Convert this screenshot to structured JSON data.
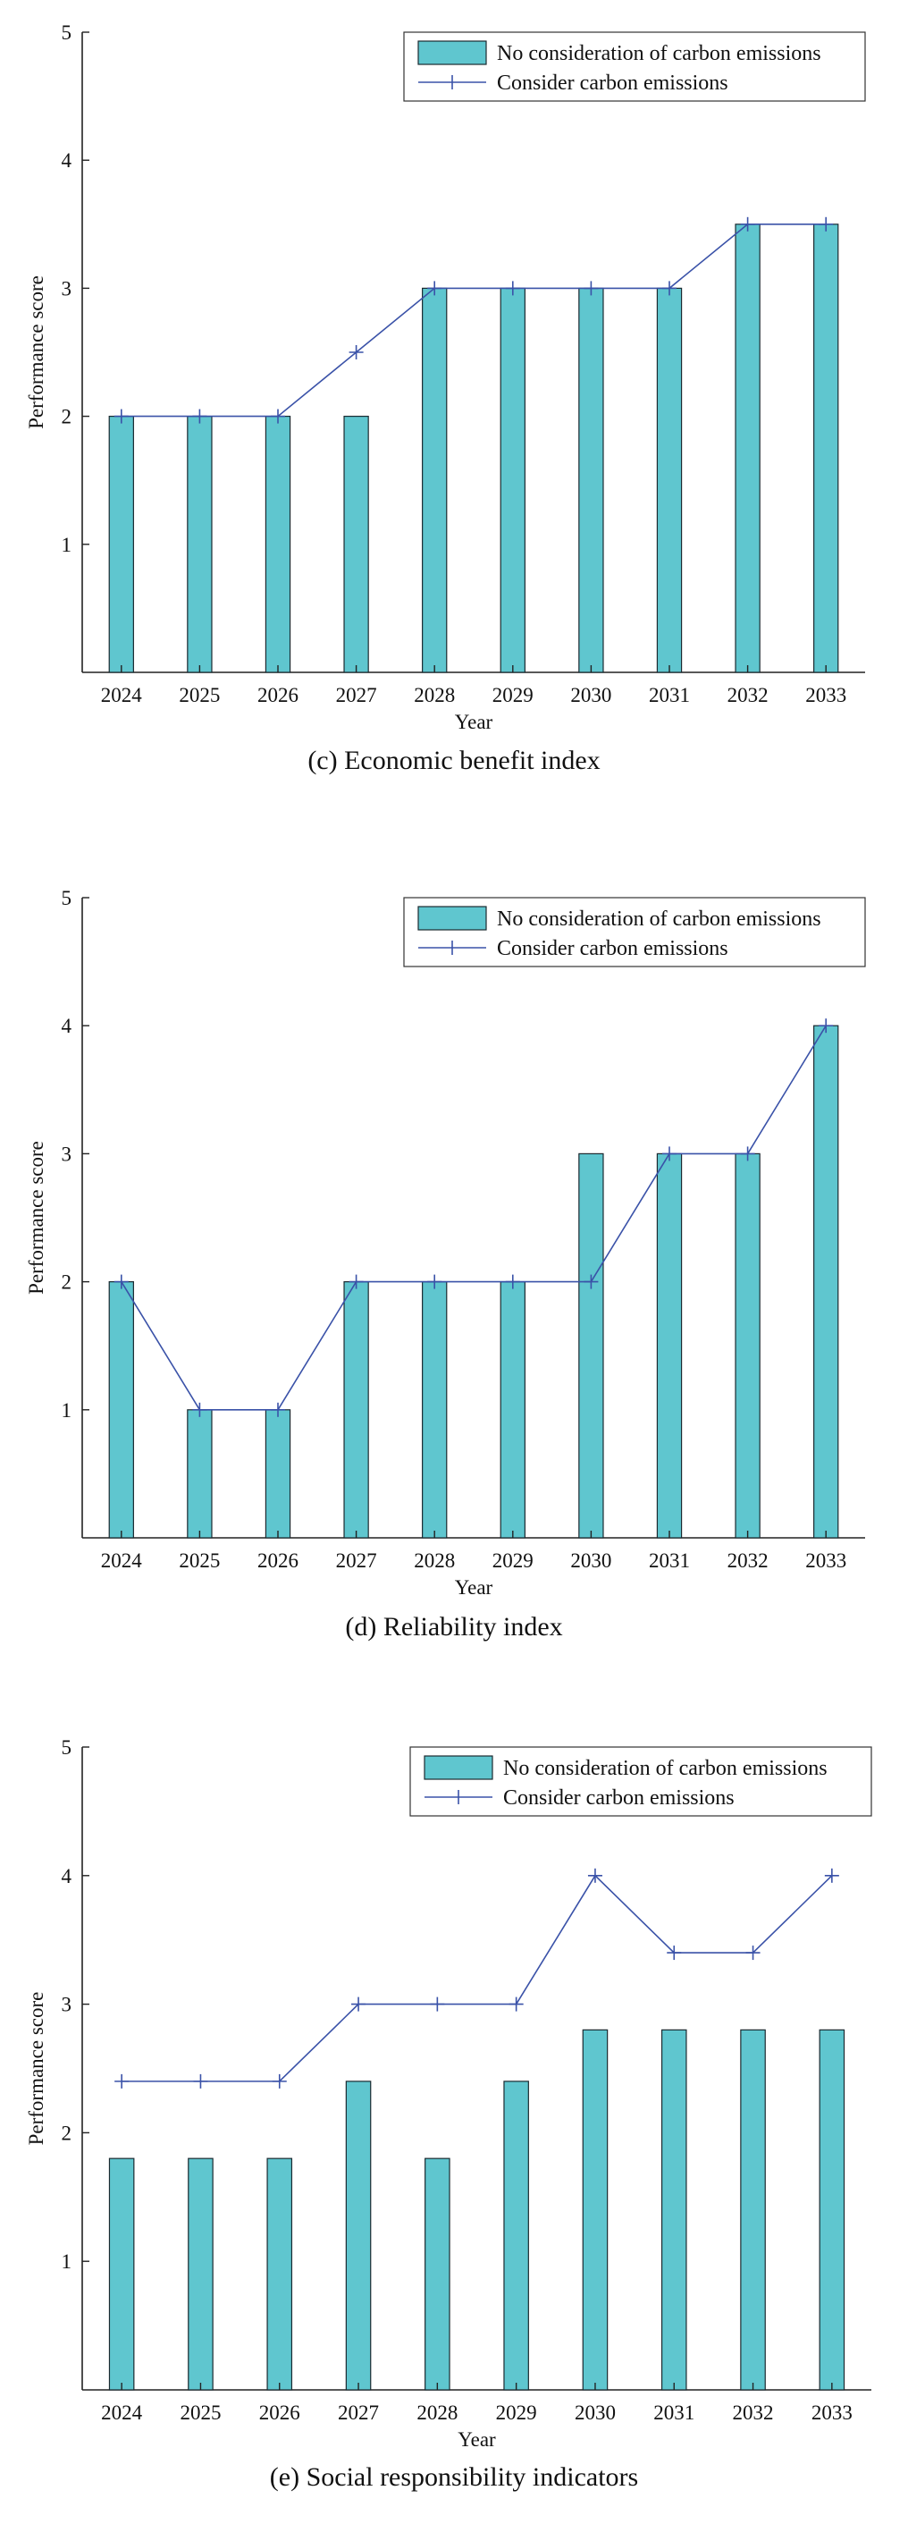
{
  "colors": {
    "bar_fill": "#5FC6CF",
    "bar_stroke": "#1b2a30",
    "line": "#3A52A8",
    "axis": "#222222"
  },
  "charts": [
    {
      "caption": "(c) Economic benefit index",
      "chart_data": {
        "type": "bar",
        "xlabel": "Year",
        "ylabel": "Performance score",
        "ylim": [
          0,
          5
        ],
        "yticks": [
          1,
          2,
          3,
          4,
          5
        ],
        "categories": [
          "2024",
          "2025",
          "2026",
          "2027",
          "2028",
          "2029",
          "2030",
          "2031",
          "2032",
          "2033"
        ],
        "legend_position": "top-right",
        "series": [
          {
            "name": "No consideration of carbon emissions",
            "type": "bar",
            "values": [
              2,
              2,
              2,
              2,
              3,
              3,
              3,
              3,
              3.5,
              3.5
            ]
          },
          {
            "name": "Consider carbon emissions",
            "type": "line",
            "marker": "+",
            "values": [
              2,
              2,
              2,
              2.5,
              3,
              3,
              3,
              3,
              3.5,
              3.5
            ]
          }
        ]
      }
    },
    {
      "caption": "(d) Reliability index",
      "chart_data": {
        "type": "bar",
        "xlabel": "Year",
        "ylabel": "Performance score",
        "ylim": [
          0,
          5
        ],
        "yticks": [
          1,
          2,
          3,
          4,
          5
        ],
        "categories": [
          "2024",
          "2025",
          "2026",
          "2027",
          "2028",
          "2029",
          "2030",
          "2031",
          "2032",
          "2033"
        ],
        "legend_position": "top-right",
        "series": [
          {
            "name": "No consideration of carbon emissions",
            "type": "bar",
            "values": [
              2,
              1,
              1,
              2,
              2,
              2,
              3,
              3,
              3,
              4
            ]
          },
          {
            "name": "Consider carbon emissions",
            "type": "line",
            "marker": "+",
            "values": [
              2,
              1,
              1,
              2,
              2,
              2,
              2,
              3,
              3,
              4
            ]
          }
        ]
      }
    },
    {
      "caption": "(e) Social responsibility indicators",
      "chart_data": {
        "type": "bar",
        "xlabel": "Year",
        "ylabel": "Performance score",
        "ylim": [
          0,
          5
        ],
        "yticks": [
          1,
          2,
          3,
          4,
          5
        ],
        "categories": [
          "2024",
          "2025",
          "2026",
          "2027",
          "2028",
          "2029",
          "2030",
          "2031",
          "2032",
          "2033"
        ],
        "legend_position": "top-right",
        "series": [
          {
            "name": "No consideration of carbon emissions",
            "type": "bar",
            "values": [
              1.8,
              1.8,
              1.8,
              2.4,
              1.8,
              2.4,
              2.8,
              2.8,
              2.8,
              2.8
            ]
          },
          {
            "name": "Consider carbon emissions",
            "type": "line",
            "marker": "+",
            "values": [
              2.4,
              2.4,
              2.4,
              3,
              3,
              3,
              4,
              3.4,
              3.4,
              4
            ]
          }
        ]
      }
    }
  ]
}
